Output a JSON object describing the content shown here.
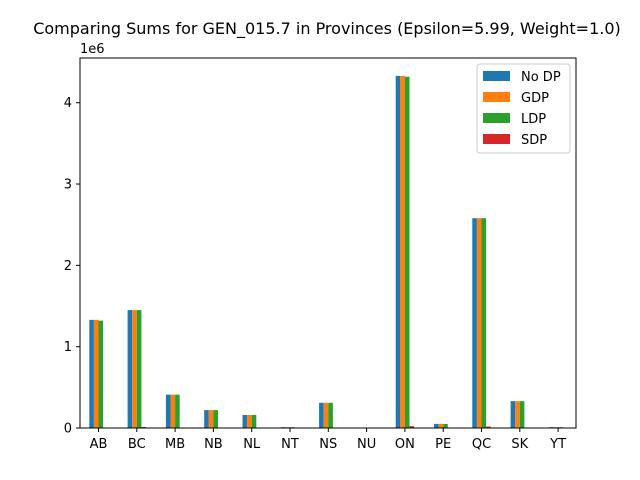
{
  "chart_data": {
    "type": "bar",
    "title": "Comparing Sums for GEN_015.7 in Provinces (Epsilon=5.99, Weight=1.0)",
    "xlabel": "",
    "ylabel": "",
    "offset_text": "1e6",
    "categories": [
      "AB",
      "BC",
      "MB",
      "NB",
      "NL",
      "NT",
      "NS",
      "NU",
      "ON",
      "PE",
      "QC",
      "SK",
      "YT"
    ],
    "ylim": [
      0,
      4.55
    ],
    "yticks": [
      0,
      1,
      2,
      3,
      4
    ],
    "grid": false,
    "legend_position": "top-right",
    "series": [
      {
        "name": "No DP",
        "color": "#1f77b4",
        "values": [
          1.33,
          1.45,
          0.41,
          0.22,
          0.16,
          0.01,
          0.31,
          0.004,
          4.33,
          0.05,
          2.58,
          0.33,
          0.01
        ]
      },
      {
        "name": "GDP",
        "color": "#ff7f0e",
        "values": [
          1.33,
          1.45,
          0.41,
          0.22,
          0.16,
          0.01,
          0.31,
          0.004,
          4.33,
          0.05,
          2.58,
          0.33,
          0.01
        ]
      },
      {
        "name": "LDP",
        "color": "#2ca02c",
        "values": [
          1.32,
          1.45,
          0.41,
          0.22,
          0.16,
          0.01,
          0.31,
          0.004,
          4.32,
          0.05,
          2.58,
          0.33,
          0.01
        ]
      },
      {
        "name": "SDP",
        "color": "#d62728",
        "values": [
          0.003,
          0.012,
          0.003,
          0.002,
          0.001,
          0.0,
          0.002,
          0.0,
          0.022,
          0.0,
          0.018,
          0.002,
          0.0
        ]
      }
    ]
  }
}
